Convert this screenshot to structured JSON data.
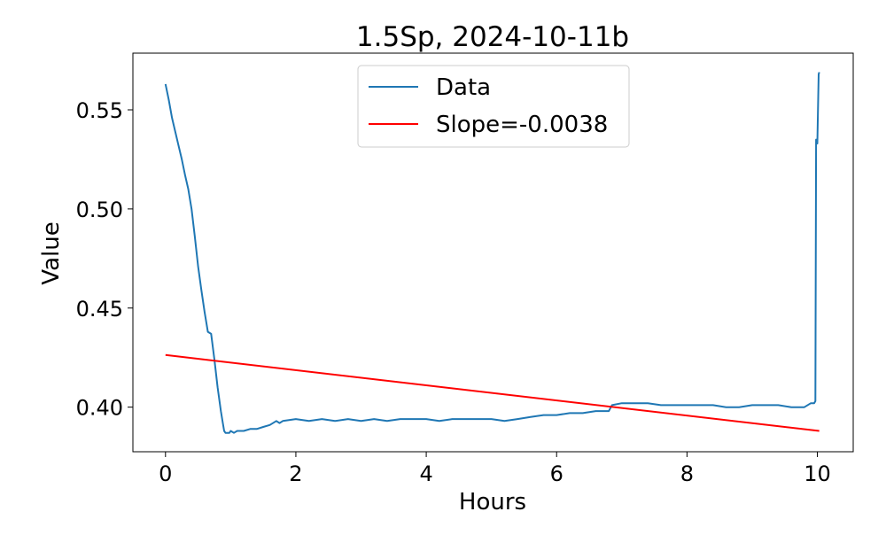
{
  "chart_data": {
    "type": "line",
    "title": "1.5Sp, 2024-10-11b",
    "xlabel": "Hours",
    "ylabel": "Value",
    "xlim": [
      -0.5,
      10.55
    ],
    "ylim": [
      0.3775,
      0.5786
    ],
    "xticks": [
      0,
      2,
      4,
      6,
      8,
      10
    ],
    "xtick_labels": [
      "0",
      "2",
      "4",
      "6",
      "8",
      "10"
    ],
    "yticks": [
      0.4,
      0.45,
      0.5,
      0.55
    ],
    "ytick_labels": [
      "0.40",
      "0.45",
      "0.50",
      "0.55"
    ],
    "grid": false,
    "legend_position": "top-center",
    "series": [
      {
        "name": "Data",
        "color": "#1f77b4",
        "x": [
          0.0,
          0.05,
          0.1,
          0.15,
          0.2,
          0.25,
          0.3,
          0.35,
          0.4,
          0.45,
          0.5,
          0.55,
          0.6,
          0.65,
          0.7,
          0.75,
          0.8,
          0.85,
          0.88,
          0.9,
          0.92,
          0.95,
          0.98,
          1.0,
          1.05,
          1.1,
          1.2,
          1.3,
          1.4,
          1.5,
          1.6,
          1.7,
          1.75,
          1.8,
          2.0,
          2.2,
          2.4,
          2.6,
          2.8,
          3.0,
          3.2,
          3.4,
          3.6,
          3.8,
          4.0,
          4.2,
          4.4,
          4.6,
          4.8,
          5.0,
          5.2,
          5.4,
          5.6,
          5.8,
          6.0,
          6.2,
          6.4,
          6.6,
          6.8,
          6.85,
          7.0,
          7.2,
          7.4,
          7.6,
          7.8,
          8.0,
          8.2,
          8.4,
          8.6,
          8.8,
          9.0,
          9.2,
          9.4,
          9.6,
          9.8,
          9.9,
          9.95,
          9.97,
          9.98,
          10.0,
          10.02,
          10.03
        ],
        "y": [
          0.563,
          0.555,
          0.546,
          0.539,
          0.532,
          0.525,
          0.517,
          0.51,
          0.5,
          0.486,
          0.471,
          0.459,
          0.448,
          0.438,
          0.437,
          0.424,
          0.41,
          0.398,
          0.392,
          0.388,
          0.387,
          0.387,
          0.387,
          0.388,
          0.387,
          0.388,
          0.388,
          0.389,
          0.389,
          0.39,
          0.391,
          0.393,
          0.392,
          0.393,
          0.394,
          0.393,
          0.394,
          0.393,
          0.394,
          0.393,
          0.394,
          0.393,
          0.394,
          0.394,
          0.394,
          0.393,
          0.394,
          0.394,
          0.394,
          0.394,
          0.393,
          0.394,
          0.395,
          0.396,
          0.396,
          0.397,
          0.397,
          0.398,
          0.398,
          0.401,
          0.402,
          0.402,
          0.402,
          0.401,
          0.401,
          0.401,
          0.401,
          0.401,
          0.4,
          0.4,
          0.401,
          0.401,
          0.401,
          0.4,
          0.4,
          0.402,
          0.402,
          0.403,
          0.535,
          0.533,
          0.568,
          0.569
        ]
      },
      {
        "name": "Slope=-0.0038",
        "color": "#ff0000",
        "x": [
          0,
          10.03
        ],
        "y": [
          0.4263,
          0.388
        ]
      }
    ]
  }
}
